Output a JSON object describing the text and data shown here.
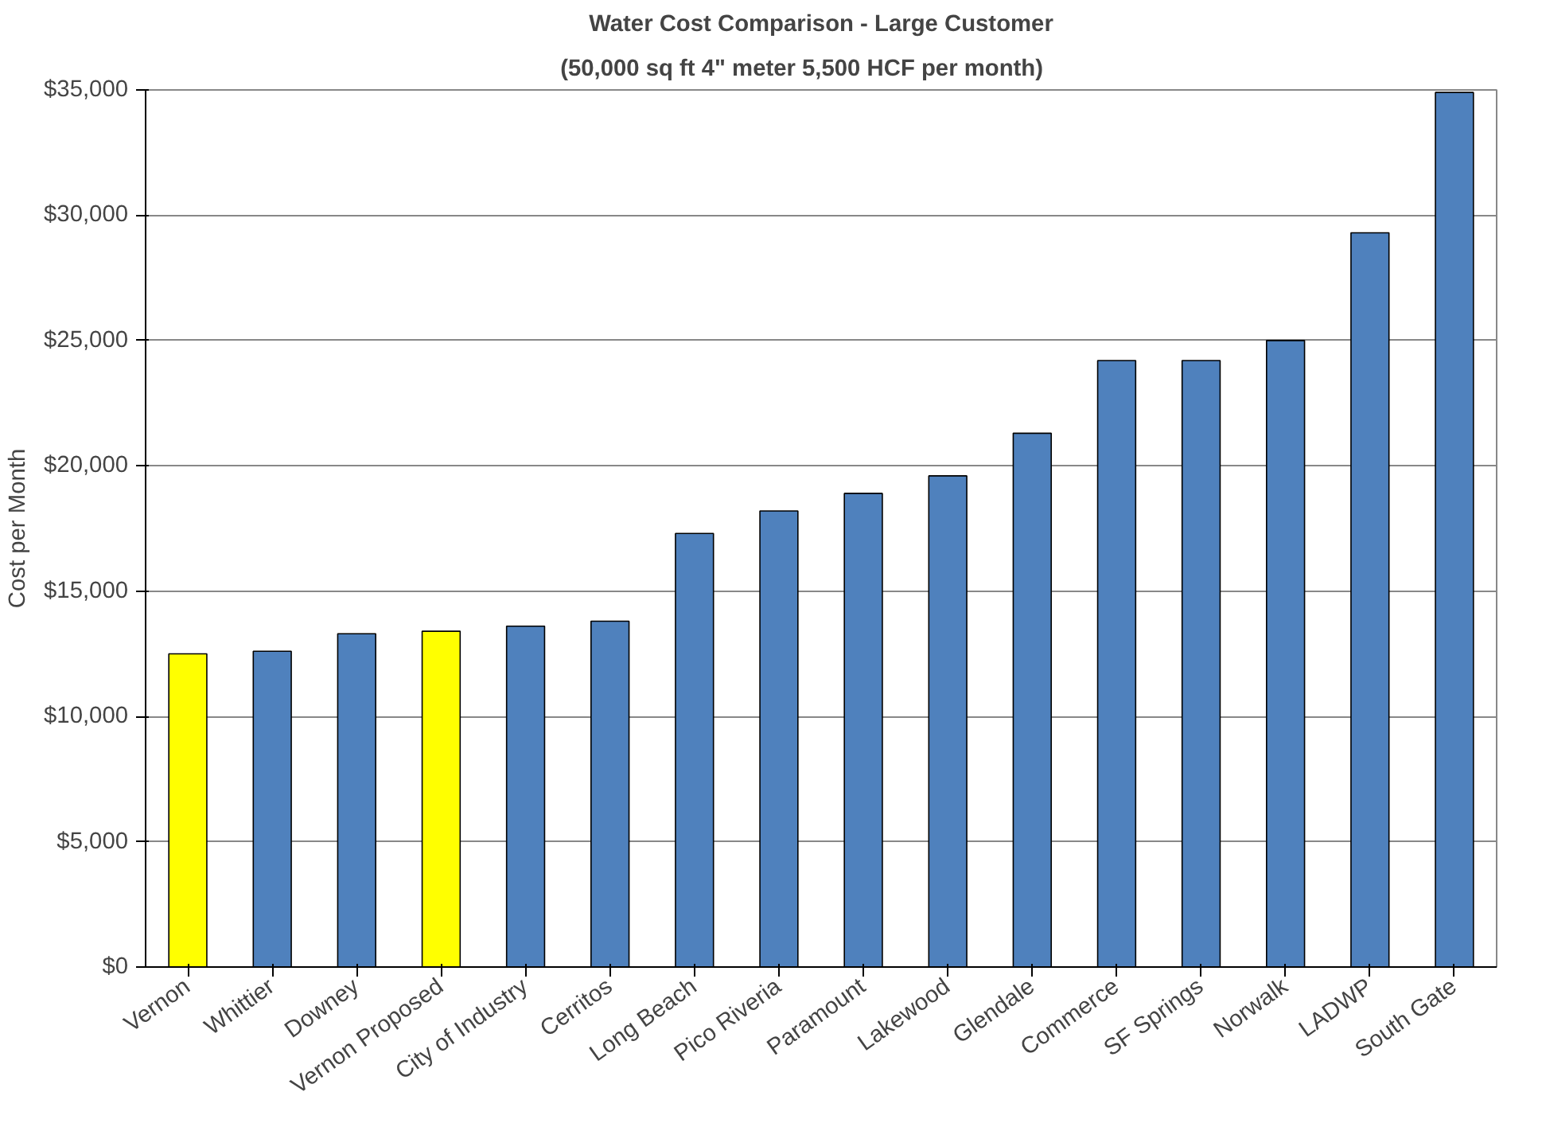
{
  "chart_data": {
    "type": "bar",
    "title": "Water Cost Comparison - Large Customer",
    "subtitle": "(50,000 sq ft    4\" meter    5,500 HCF per month)",
    "ylabel": "Cost per Month",
    "categories": [
      "Vernon",
      "Whittier",
      "Downey",
      "Vernon Proposed",
      "City of Industry",
      "Cerritos",
      "Long Beach",
      "Pico Riveria",
      "Paramount",
      "Lakewood",
      "Glendale",
      "Commerce",
      "SF Springs",
      "Norwalk",
      "LADWP",
      "South Gate"
    ],
    "values": [
      12500,
      12600,
      13300,
      13400,
      13600,
      13800,
      17300,
      18200,
      18900,
      19600,
      21300,
      24200,
      24200,
      25000,
      29300,
      34900
    ],
    "colors": [
      "#ffff00",
      "#4f81bd",
      "#4f81bd",
      "#ffff00",
      "#4f81bd",
      "#4f81bd",
      "#4f81bd",
      "#4f81bd",
      "#4f81bd",
      "#4f81bd",
      "#4f81bd",
      "#4f81bd",
      "#4f81bd",
      "#4f81bd",
      "#4f81bd",
      "#4f81bd"
    ],
    "ylim": [
      0,
      35000
    ],
    "yticks": [
      {
        "value": 0,
        "label": "$0"
      },
      {
        "value": 5000,
        "label": "$5,000"
      },
      {
        "value": 10000,
        "label": "$10,000"
      },
      {
        "value": 15000,
        "label": "$15,000"
      },
      {
        "value": 20000,
        "label": "$20,000"
      },
      {
        "value": 25000,
        "label": "$25,000"
      },
      {
        "value": 30000,
        "label": "$30,000"
      },
      {
        "value": 35000,
        "label": "$35,000"
      }
    ],
    "grid": "y"
  }
}
